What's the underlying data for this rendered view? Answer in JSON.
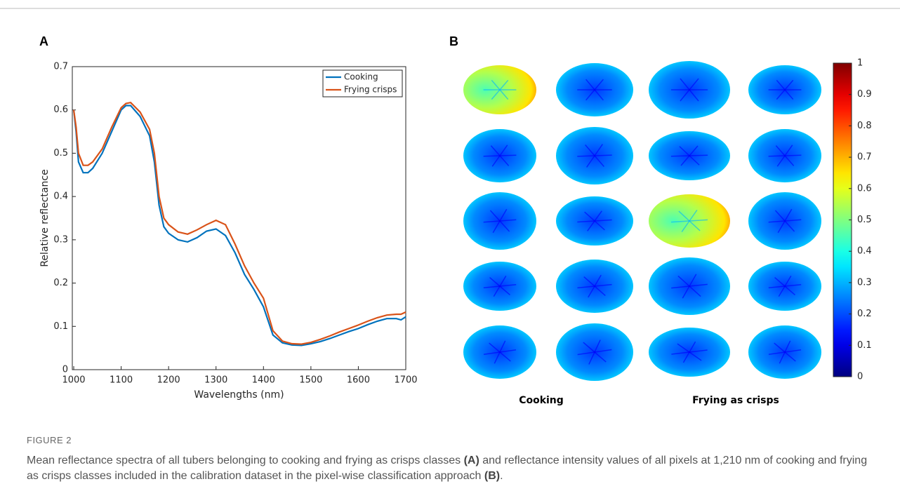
{
  "figure": {
    "label": "FIGURE 2",
    "caption": [
      "Mean reflectance spectra of all tubers belonging to cooking and frying as crisps classes ",
      "(A)",
      " and reflectance intensity values of all pixels at 1,210 nm of cooking and frying as crisps classes included in the calibration dataset in the pixel-wise classification approach ",
      "(B)",
      "."
    ]
  },
  "chart_data": [
    {
      "type": "line",
      "panel": "A",
      "xlabel": "Wavelengths (nm)",
      "ylabel": "Relative reflectance",
      "x": [
        1000,
        1005,
        1010,
        1020,
        1030,
        1040,
        1060,
        1080,
        1100,
        1110,
        1120,
        1140,
        1160,
        1170,
        1180,
        1190,
        1200,
        1220,
        1240,
        1260,
        1280,
        1300,
        1320,
        1340,
        1360,
        1380,
        1400,
        1420,
        1440,
        1460,
        1480,
        1500,
        1520,
        1540,
        1560,
        1580,
        1600,
        1620,
        1640,
        1660,
        1680,
        1690,
        1700
      ],
      "series": [
        {
          "name": "Cooking",
          "color": "#0072bd",
          "values": [
            0.6,
            0.55,
            0.48,
            0.455,
            0.455,
            0.465,
            0.5,
            0.55,
            0.6,
            0.61,
            0.61,
            0.585,
            0.54,
            0.48,
            0.38,
            0.33,
            0.315,
            0.3,
            0.295,
            0.305,
            0.32,
            0.325,
            0.31,
            0.27,
            0.22,
            0.185,
            0.145,
            0.08,
            0.062,
            0.057,
            0.056,
            0.06,
            0.065,
            0.072,
            0.08,
            0.088,
            0.095,
            0.104,
            0.112,
            0.118,
            0.118,
            0.115,
            0.122
          ]
        },
        {
          "name": "Frying crisps",
          "color": "#d95319",
          "values": [
            0.6,
            0.56,
            0.5,
            0.472,
            0.472,
            0.48,
            0.51,
            0.56,
            0.605,
            0.615,
            0.617,
            0.595,
            0.555,
            0.5,
            0.4,
            0.35,
            0.335,
            0.318,
            0.313,
            0.323,
            0.335,
            0.345,
            0.335,
            0.29,
            0.24,
            0.2,
            0.165,
            0.09,
            0.066,
            0.06,
            0.059,
            0.063,
            0.07,
            0.078,
            0.087,
            0.095,
            0.103,
            0.112,
            0.12,
            0.126,
            0.128,
            0.128,
            0.133
          ]
        }
      ],
      "xlim": [
        997,
        1700
      ],
      "xticks": [
        1000,
        1100,
        1200,
        1300,
        1400,
        1500,
        1600,
        1700
      ],
      "ylim": [
        0,
        0.7
      ],
      "yticks": [
        0,
        0.1,
        0.2,
        0.3,
        0.4,
        0.5,
        0.6,
        0.7
      ],
      "legend": "upper right"
    },
    {
      "type": "image-grid",
      "panel": "B",
      "columns": [
        "Cooking",
        "Frying as crisps"
      ],
      "clim": [
        0,
        1
      ],
      "cticks": [
        0,
        0.1,
        0.2,
        0.3,
        0.4,
        0.5,
        0.6,
        0.7,
        0.8,
        0.9,
        1
      ],
      "colormap": "jet"
    }
  ]
}
